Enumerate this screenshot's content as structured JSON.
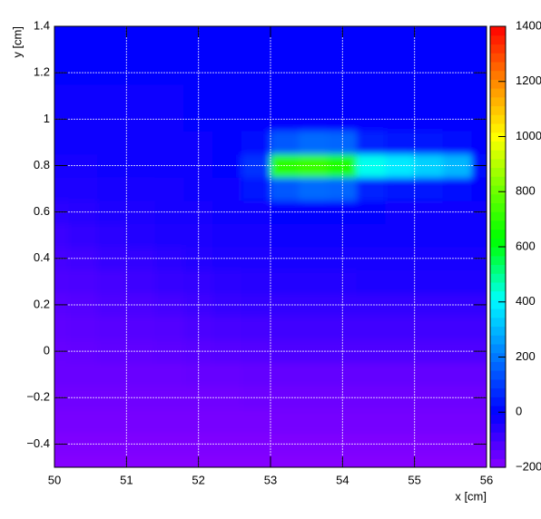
{
  "chart_data": {
    "type": "contour",
    "x_label": "x [cm]",
    "y_label": "y [cm]",
    "xlim": [
      50,
      56
    ],
    "ylim": [
      -0.5,
      1.4
    ],
    "zlim": [
      -200,
      1400
    ],
    "xticks": [
      50,
      51,
      52,
      53,
      54,
      55,
      56
    ],
    "yticks": [
      {
        "value": -0.4,
        "label": "−0.4"
      },
      {
        "value": -0.2,
        "label": "−0.2"
      },
      0,
      0.2,
      0.4,
      0.6,
      0.8,
      1,
      1.2,
      1.4
    ],
    "zticks": [
      {
        "value": -200,
        "label": "−200"
      },
      0,
      200,
      400,
      600,
      800,
      1000,
      1200,
      1400
    ],
    "grid": true,
    "x": [
      50,
      50.4,
      50.8,
      51.2,
      51.6,
      52,
      52.4,
      52.8,
      53.2,
      53.6,
      54,
      54.4,
      54.8,
      55.2,
      55.6,
      56
    ],
    "y": [
      -0.5,
      -0.4,
      -0.3,
      -0.2,
      -0.1,
      0,
      0.1,
      0.2,
      0.3,
      0.4,
      0.5,
      0.6,
      0.7,
      0.8,
      0.9,
      1,
      1.1,
      1.2,
      1.3,
      1.4
    ],
    "z": [
      [
        -195,
        -195,
        -195,
        -195,
        -195,
        -195,
        -195,
        -195,
        -195,
        -195,
        -195,
        -195,
        -195,
        -195,
        -195,
        -195
      ],
      [
        -185,
        -185,
        -185,
        -185,
        -185,
        -185,
        -185,
        -185,
        -185,
        -185,
        -185,
        -185,
        -185,
        -185,
        -185,
        -185
      ],
      [
        -175,
        -175,
        -175,
        -175,
        -175,
        -175,
        -175,
        -175,
        -170,
        -170,
        -170,
        -170,
        -170,
        -170,
        -170,
        -170
      ],
      [
        -165,
        -165,
        -165,
        -165,
        -165,
        -165,
        -165,
        -160,
        -160,
        -160,
        -160,
        -160,
        -160,
        -160,
        -160,
        -160
      ],
      [
        -155,
        -155,
        -155,
        -155,
        -155,
        -150,
        -150,
        -145,
        -145,
        -145,
        -145,
        -145,
        -145,
        -145,
        -145,
        -145
      ],
      [
        -150,
        -145,
        -140,
        -140,
        -135,
        -130,
        -125,
        -120,
        -115,
        -115,
        -115,
        -115,
        -115,
        -115,
        -115,
        -115
      ],
      [
        -140,
        -135,
        -130,
        -125,
        -120,
        -110,
        -105,
        -100,
        -95,
        -95,
        -95,
        -95,
        -95,
        -95,
        -95,
        -95
      ],
      [
        -130,
        -125,
        -115,
        -110,
        -100,
        -90,
        -80,
        -75,
        -70,
        -70,
        -70,
        -70,
        -70,
        -70,
        -70,
        -70
      ],
      [
        -115,
        -110,
        -100,
        -90,
        -80,
        -70,
        -60,
        -55,
        -50,
        -50,
        -50,
        -45,
        -45,
        -45,
        -45,
        -45
      ],
      [
        -100,
        -95,
        -80,
        -70,
        -60,
        -50,
        -45,
        -40,
        -35,
        -30,
        -30,
        -30,
        -30,
        -30,
        -30,
        -30
      ],
      [
        -85,
        -75,
        -60,
        -50,
        -45,
        -40,
        -35,
        -30,
        -25,
        -20,
        -20,
        -20,
        -20,
        -20,
        -20,
        -20
      ],
      [
        -65,
        -55,
        -45,
        -40,
        -35,
        -30,
        -25,
        -15,
        -5,
        0,
        0,
        -5,
        -10,
        -10,
        -10,
        -10
      ],
      [
        -45,
        -40,
        -35,
        -30,
        -30,
        -25,
        -15,
        30,
        150,
        180,
        170,
        60,
        40,
        30,
        20,
        0
      ],
      [
        -30,
        -30,
        -25,
        -25,
        -20,
        -15,
        0,
        80,
        700,
        720,
        680,
        420,
        380,
        340,
        300,
        20
      ],
      [
        -20,
        -20,
        -20,
        -15,
        -15,
        -10,
        -5,
        20,
        150,
        180,
        170,
        60,
        40,
        30,
        20,
        0
      ],
      [
        -15,
        -15,
        -15,
        -10,
        -10,
        -5,
        -5,
        0,
        0,
        0,
        0,
        -5,
        -5,
        -5,
        -5,
        -5
      ],
      [
        -10,
        -10,
        -10,
        -10,
        -10,
        -5,
        -5,
        -5,
        -5,
        -5,
        -5,
        -5,
        -5,
        -5,
        -5,
        -5
      ],
      [
        -5,
        -5,
        -5,
        -5,
        -5,
        -5,
        -5,
        -5,
        -5,
        -5,
        -5,
        -5,
        -5,
        -5,
        -5,
        -5
      ],
      [
        0,
        0,
        0,
        0,
        0,
        0,
        0,
        0,
        0,
        0,
        0,
        0,
        0,
        0,
        0,
        0
      ],
      [
        0,
        0,
        0,
        0,
        0,
        0,
        0,
        0,
        0,
        0,
        0,
        0,
        0,
        0,
        0,
        0
      ]
    ]
  }
}
